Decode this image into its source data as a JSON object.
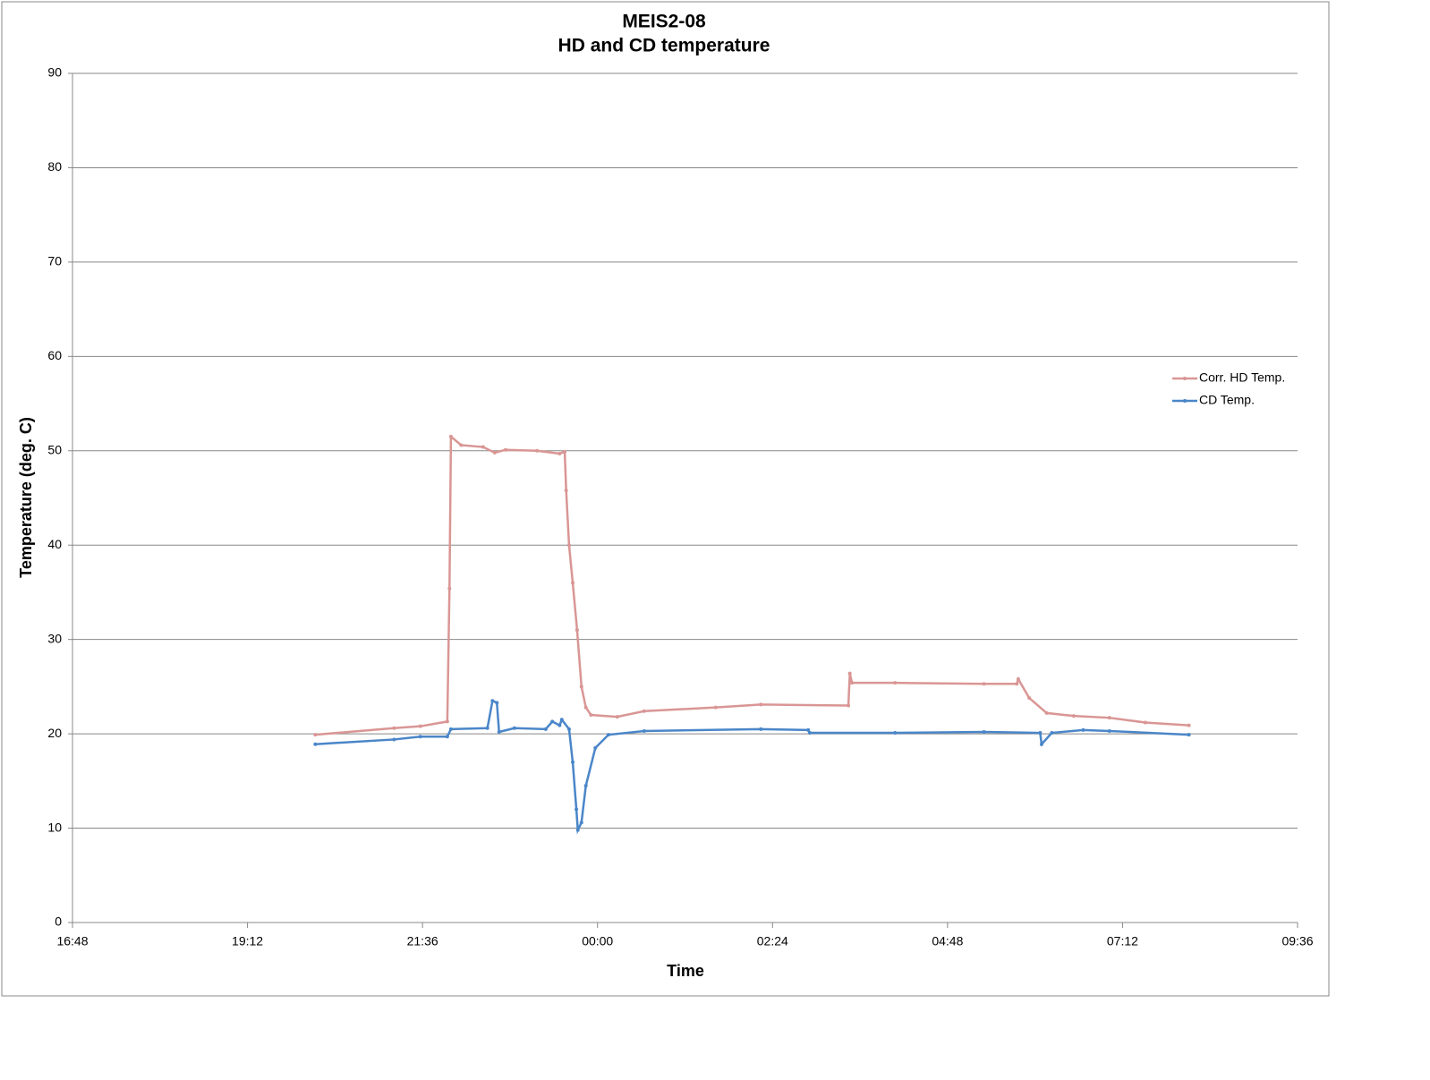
{
  "chart_data": {
    "type": "line",
    "title": "MEIS2-08",
    "subtitle": "HD and CD temperature",
    "x_label": "Time",
    "y_label": "Temperature (deg. C)",
    "xlim": [
      16.8,
      33.6
    ],
    "xticks": [
      {
        "value": 16.8,
        "label": "16:48"
      },
      {
        "value": 19.2,
        "label": "19:12"
      },
      {
        "value": 21.6,
        "label": "21:36"
      },
      {
        "value": 24,
        "label": "00:00"
      },
      {
        "value": 26.4,
        "label": "02:24"
      },
      {
        "value": 28.8,
        "label": "04:48"
      },
      {
        "value": 31.2,
        "label": "07:12"
      },
      {
        "value": 33.6,
        "label": "09:36"
      }
    ],
    "ylim": [
      0,
      90
    ],
    "yticks": [
      0,
      10,
      20,
      30,
      40,
      50,
      60,
      70,
      80,
      90
    ],
    "grid": true,
    "legend": "right",
    "series": [
      {
        "name": "Corr. HD Temp.",
        "color": "#d99694",
        "x": [
          20.13,
          21.21,
          21.57,
          21.94,
          21.97,
          21.99,
          22.13,
          22.43,
          22.59,
          22.74,
          23.17,
          23.48,
          23.55,
          23.57,
          23.61,
          23.66,
          23.72,
          23.78,
          23.84,
          23.91,
          24.27,
          24.64,
          25.62,
          26.24,
          27.44,
          27.46,
          27.49,
          28.08,
          29.3,
          29.75,
          29.77,
          29.92,
          30.16,
          30.53,
          31.02,
          31.51,
          32.11
        ],
        "values": [
          19.9,
          20.6,
          20.8,
          21.3,
          35.4,
          51.5,
          50.6,
          50.4,
          49.8,
          50.1,
          50.0,
          49.7,
          49.9,
          45.8,
          40,
          36,
          31,
          25,
          22.8,
          22.0,
          21.8,
          22.4,
          22.8,
          23.1,
          23.0,
          26.4,
          25.4,
          25.4,
          25.3,
          25.3,
          25.8,
          23.8,
          22.2,
          21.9,
          21.7,
          21.2,
          20.9
        ]
      },
      {
        "name": "CD Temp.",
        "color": "#4a86c8",
        "x": [
          20.13,
          21.21,
          21.57,
          21.94,
          21.99,
          22.49,
          22.56,
          22.62,
          22.65,
          22.86,
          23.29,
          23.38,
          23.48,
          23.51,
          23.61,
          23.66,
          23.71,
          23.73,
          23.78,
          23.84,
          23.97,
          24.15,
          24.64,
          26.24,
          26.89,
          26.91,
          28.08,
          29.3,
          30.07,
          30.09,
          30.23,
          30.66,
          31.02,
          32.11
        ],
        "values": [
          18.9,
          19.4,
          19.7,
          19.7,
          20.5,
          20.6,
          23.5,
          23.3,
          20.2,
          20.6,
          20.5,
          21.3,
          20.9,
          21.5,
          20.5,
          17,
          12,
          9.8,
          10.6,
          14.5,
          18.5,
          19.9,
          20.3,
          20.5,
          20.4,
          20.1,
          20.1,
          20.2,
          20.1,
          18.9,
          20.1,
          20.4,
          20.3,
          19.9
        ]
      }
    ]
  }
}
